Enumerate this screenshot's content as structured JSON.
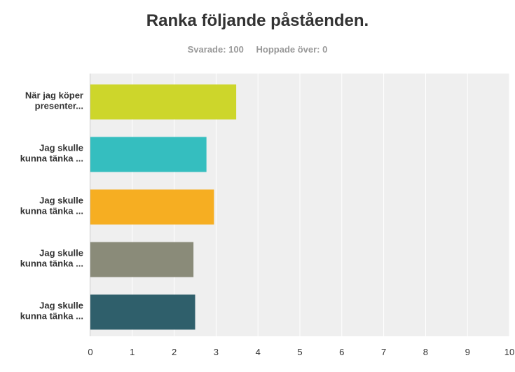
{
  "title": "Ranka följande påståenden.",
  "stats": {
    "answered": "Svarade: 100",
    "skipped": "Hoppade över: 0"
  },
  "chart_data": {
    "type": "bar",
    "orientation": "horizontal",
    "categories": [
      [
        "När jag köper",
        "presenter..."
      ],
      [
        "Jag skulle",
        "kunna tänka ..."
      ],
      [
        "Jag skulle",
        "kunna tänka ..."
      ],
      [
        "Jag skulle",
        "kunna tänka ..."
      ],
      [
        "Jag skulle",
        "kunna tänka ..."
      ]
    ],
    "values": [
      3.48,
      2.77,
      2.95,
      2.46,
      2.5
    ],
    "colors": [
      "#cdd62b",
      "#35bebf",
      "#f6ae22",
      "#8a8b79",
      "#2f5f6b"
    ],
    "xlim": [
      0,
      10
    ],
    "x_ticks": [
      "0",
      "1",
      "2",
      "3",
      "4",
      "5",
      "6",
      "7",
      "8",
      "9",
      "10"
    ],
    "grid": true,
    "plot_background": "#efefef",
    "gridline_color": "#ffffff"
  }
}
